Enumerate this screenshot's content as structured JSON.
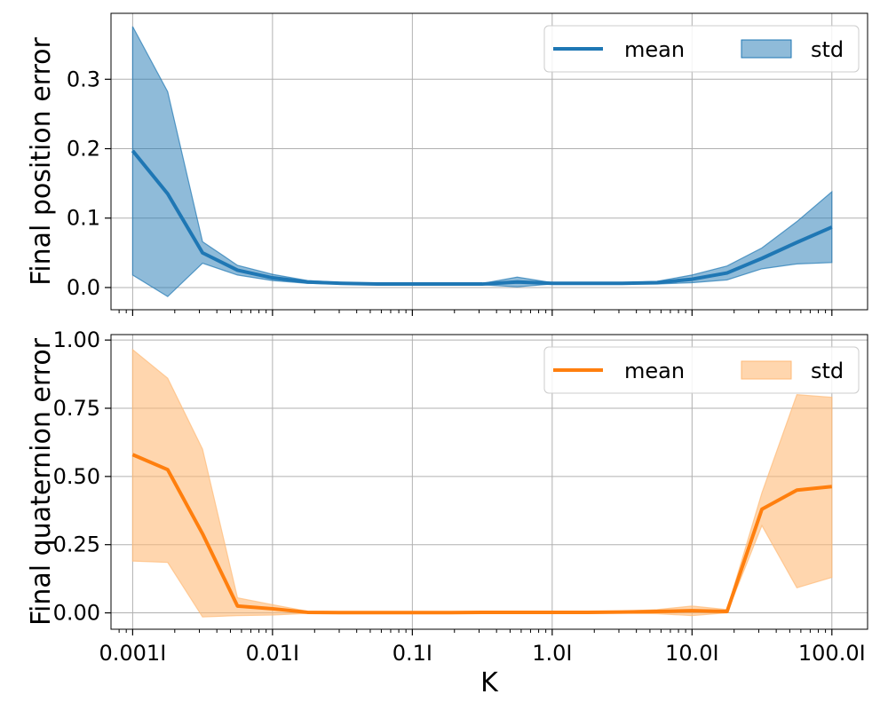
{
  "chart_data": [
    {
      "type": "line",
      "xscale": "log",
      "xlim": [
        0.0007,
        180
      ],
      "ylim": [
        -0.032,
        0.395
      ],
      "xticks": [
        0.001,
        0.01,
        0.1,
        1.0,
        10.0,
        100.0
      ],
      "xtick_labels": [
        "0.001I",
        "0.01I",
        "0.1I",
        "1.0I",
        "10.0I",
        "100.0I"
      ],
      "yticks": [
        0.0,
        0.1,
        0.2,
        0.3
      ],
      "ytick_labels": [
        "0.0",
        "0.1",
        "0.2",
        "0.3"
      ],
      "xtick_labels_visible": false,
      "xlabel": "",
      "ylabel": "Final position error",
      "grid": true,
      "legend": {
        "placement": "top-right",
        "columns": 2,
        "entries": [
          "mean",
          "std"
        ]
      },
      "colors": {
        "line": "#1f77b4",
        "fill": "#1f77b4"
      },
      "fill_alpha": 0.5,
      "x": [
        0.001,
        0.00178,
        0.00316,
        0.00562,
        0.01,
        0.0178,
        0.0316,
        0.0562,
        0.1,
        0.178,
        0.316,
        0.562,
        1.0,
        1.78,
        3.16,
        5.62,
        10.0,
        17.8,
        31.6,
        56.2,
        100.0
      ],
      "series": [
        {
          "name": "mean",
          "values": [
            0.197,
            0.135,
            0.05,
            0.025,
            0.014,
            0.008,
            0.006,
            0.005,
            0.005,
            0.005,
            0.005,
            0.008,
            0.006,
            0.006,
            0.006,
            0.007,
            0.012,
            0.021,
            0.042,
            0.065,
            0.087
          ]
        },
        {
          "name": "std",
          "lower": [
            0.018,
            -0.013,
            0.035,
            0.018,
            0.01,
            0.006,
            0.005,
            0.004,
            0.004,
            0.004,
            0.004,
            0.001,
            0.005,
            0.005,
            0.005,
            0.005,
            0.007,
            0.011,
            0.027,
            0.034,
            0.036
          ],
          "upper": [
            0.376,
            0.282,
            0.066,
            0.032,
            0.019,
            0.01,
            0.007,
            0.006,
            0.006,
            0.006,
            0.006,
            0.015,
            0.007,
            0.007,
            0.007,
            0.009,
            0.018,
            0.031,
            0.057,
            0.095,
            0.138
          ]
        }
      ]
    },
    {
      "type": "line",
      "xscale": "log",
      "xlim": [
        0.0007,
        180
      ],
      "ylim": [
        -0.06,
        1.02
      ],
      "xticks": [
        0.001,
        0.01,
        0.1,
        1.0,
        10.0,
        100.0
      ],
      "xtick_labels": [
        "0.001I",
        "0.01I",
        "0.1I",
        "1.0I",
        "10.0I",
        "100.0I"
      ],
      "yticks": [
        0.0,
        0.25,
        0.5,
        0.75,
        1.0
      ],
      "ytick_labels": [
        "0.00",
        "0.25",
        "0.50",
        "0.75",
        "1.00"
      ],
      "xtick_labels_visible": true,
      "xlabel": "K",
      "ylabel": "Final quaternion error",
      "grid": true,
      "legend": {
        "placement": "top-right",
        "columns": 2,
        "entries": [
          "mean",
          "std"
        ]
      },
      "colors": {
        "line": "#ff7f0e",
        "fill": "#ffbb78"
      },
      "fill_alpha": 0.6,
      "x": [
        0.001,
        0.00178,
        0.00316,
        0.00562,
        0.01,
        0.0178,
        0.0316,
        0.0562,
        0.1,
        0.178,
        0.316,
        0.562,
        1.0,
        1.78,
        3.16,
        5.62,
        10.0,
        17.8,
        31.6,
        56.2,
        100.0
      ],
      "series": [
        {
          "name": "mean",
          "values": [
            0.58,
            0.525,
            0.29,
            0.025,
            0.015,
            0.002,
            0.001,
            0.001,
            0.001,
            0.001,
            0.002,
            0.002,
            0.002,
            0.002,
            0.003,
            0.005,
            0.008,
            0.005,
            0.38,
            0.45,
            0.463
          ]
        },
        {
          "name": "std",
          "lower": [
            0.19,
            0.185,
            -0.015,
            -0.01,
            -0.008,
            -0.002,
            -0.001,
            -0.001,
            -0.001,
            -0.001,
            -0.001,
            -0.001,
            -0.001,
            -0.001,
            -0.001,
            -0.003,
            -0.01,
            0.0,
            0.32,
            0.092,
            0.13
          ],
          "upper": [
            0.965,
            0.86,
            0.6,
            0.055,
            0.03,
            0.006,
            0.003,
            0.003,
            0.003,
            0.003,
            0.004,
            0.004,
            0.004,
            0.004,
            0.006,
            0.012,
            0.025,
            0.012,
            0.44,
            0.8,
            0.79
          ]
        }
      ]
    }
  ]
}
